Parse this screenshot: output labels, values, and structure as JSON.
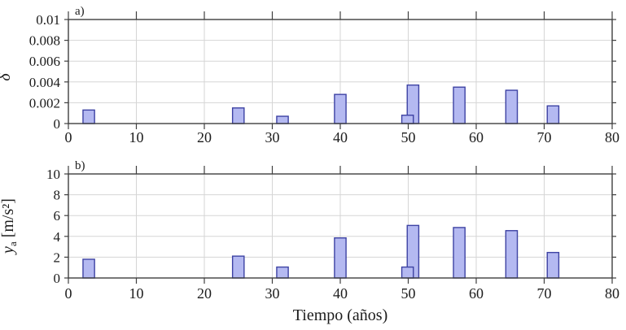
{
  "figure": {
    "xlabel": "Tiempo (años)",
    "colors": {
      "bar_fill": "#b4b9f1",
      "bar_edge": "#3d42a3",
      "grid": "#d5d5d5",
      "axis": "#3f3f3f",
      "text": "#1c1c1c"
    }
  },
  "chart_data": [
    {
      "type": "bar",
      "panel": "a)",
      "ylabel": "δ",
      "xlabel": "",
      "xlim": [
        0,
        80
      ],
      "ylim": [
        0,
        0.01
      ],
      "xticks": [
        0,
        10,
        20,
        30,
        40,
        50,
        60,
        70,
        80
      ],
      "yticks": [
        0,
        0.002,
        0.004,
        0.006,
        0.008,
        0.01
      ],
      "ytick_labels": [
        "0",
        "0.002",
        "0.004",
        "0.006",
        "0.008",
        "0.01"
      ],
      "grid": true,
      "legend": null,
      "bar_width": 1.7,
      "x": [
        3,
        25,
        31.5,
        40,
        50.7,
        49.9,
        57.5,
        65.2,
        71.3
      ],
      "values": [
        0.0013,
        0.0015,
        0.0007,
        0.0028,
        0.0037,
        0.0008,
        0.0035,
        0.0032,
        0.0017
      ]
    },
    {
      "type": "bar",
      "panel": "b)",
      "ylabel_base": "y",
      "ylabel_sub": "a",
      "ylabel_units": "[m/s²]",
      "xlabel": "Tiempo (años)",
      "xlim": [
        0,
        80
      ],
      "ylim": [
        0,
        10
      ],
      "xticks": [
        0,
        10,
        20,
        30,
        40,
        50,
        60,
        70,
        80
      ],
      "yticks": [
        0,
        2,
        4,
        6,
        8,
        10
      ],
      "ytick_labels": [
        "0",
        "2",
        "4",
        "6",
        "8",
        "10"
      ],
      "grid": true,
      "legend": null,
      "bar_width": 1.7,
      "x": [
        3,
        25,
        31.5,
        40,
        50.7,
        49.9,
        57.5,
        65.2,
        71.3
      ],
      "values": [
        1.8,
        2.1,
        1.05,
        3.85,
        5.05,
        1.05,
        4.85,
        4.55,
        2.45
      ]
    }
  ]
}
